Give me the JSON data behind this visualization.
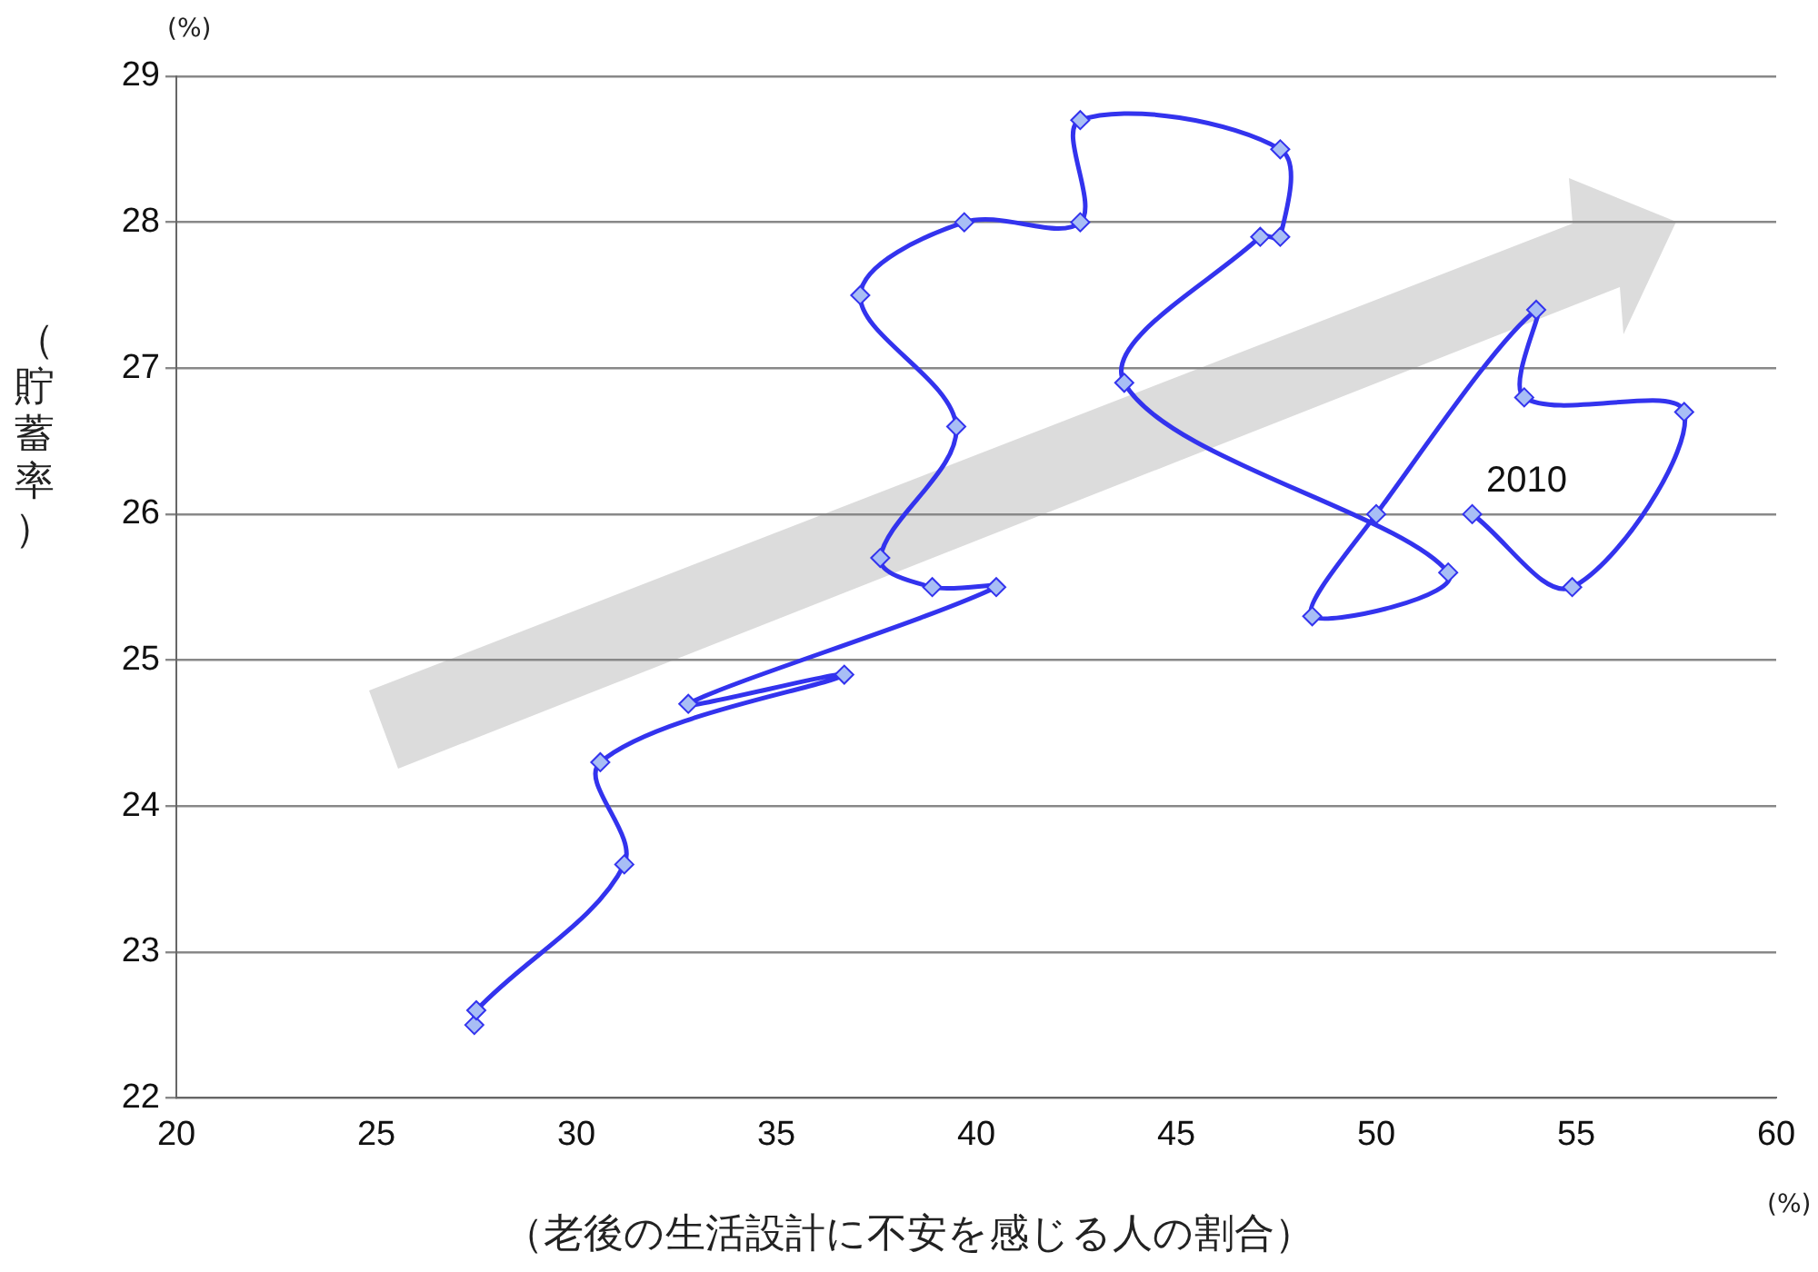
{
  "chart_data": {
    "type": "line",
    "xlabel": "（老後の生活設計に不安を感じる人の割合）",
    "ylabel": "（貯蓄率）",
    "annotations": [
      "(%)",
      "(%)",
      {
        "text": "2010",
        "x": 52.4,
        "y": 26.0
      }
    ],
    "series": [
      {
        "color": "#3333ee",
        "x": [
          27.45,
          27.5,
          31.2,
          30.6,
          36.7,
          32.8,
          40.5,
          38.9,
          37.6,
          39.5,
          37.1,
          39.7,
          42.6,
          42.6,
          47.6,
          47.6,
          47.1,
          43.7,
          51.8,
          48.4,
          50.0,
          54.0,
          53.7,
          57.7,
          54.9,
          52.4
        ],
        "values": [
          22.5,
          22.6,
          23.6,
          24.3,
          24.9,
          24.7,
          25.5,
          25.5,
          25.7,
          26.6,
          27.5,
          28.0,
          28.0,
          28.7,
          28.5,
          27.9,
          27.9,
          26.9,
          25.6,
          25.3,
          26.0,
          27.4,
          26.8,
          26.7,
          25.5,
          26.0
        ]
      }
    ],
    "xlim": [
      20,
      60
    ],
    "xticks": [
      20,
      25,
      30,
      35,
      40,
      45,
      50,
      55,
      60
    ],
    "ylim": [
      22,
      29
    ],
    "yticks": [
      22,
      23,
      24,
      25,
      26,
      27,
      28,
      29
    ],
    "grid": "y",
    "legend": false,
    "marker": "diamond",
    "line_style": "solid"
  }
}
